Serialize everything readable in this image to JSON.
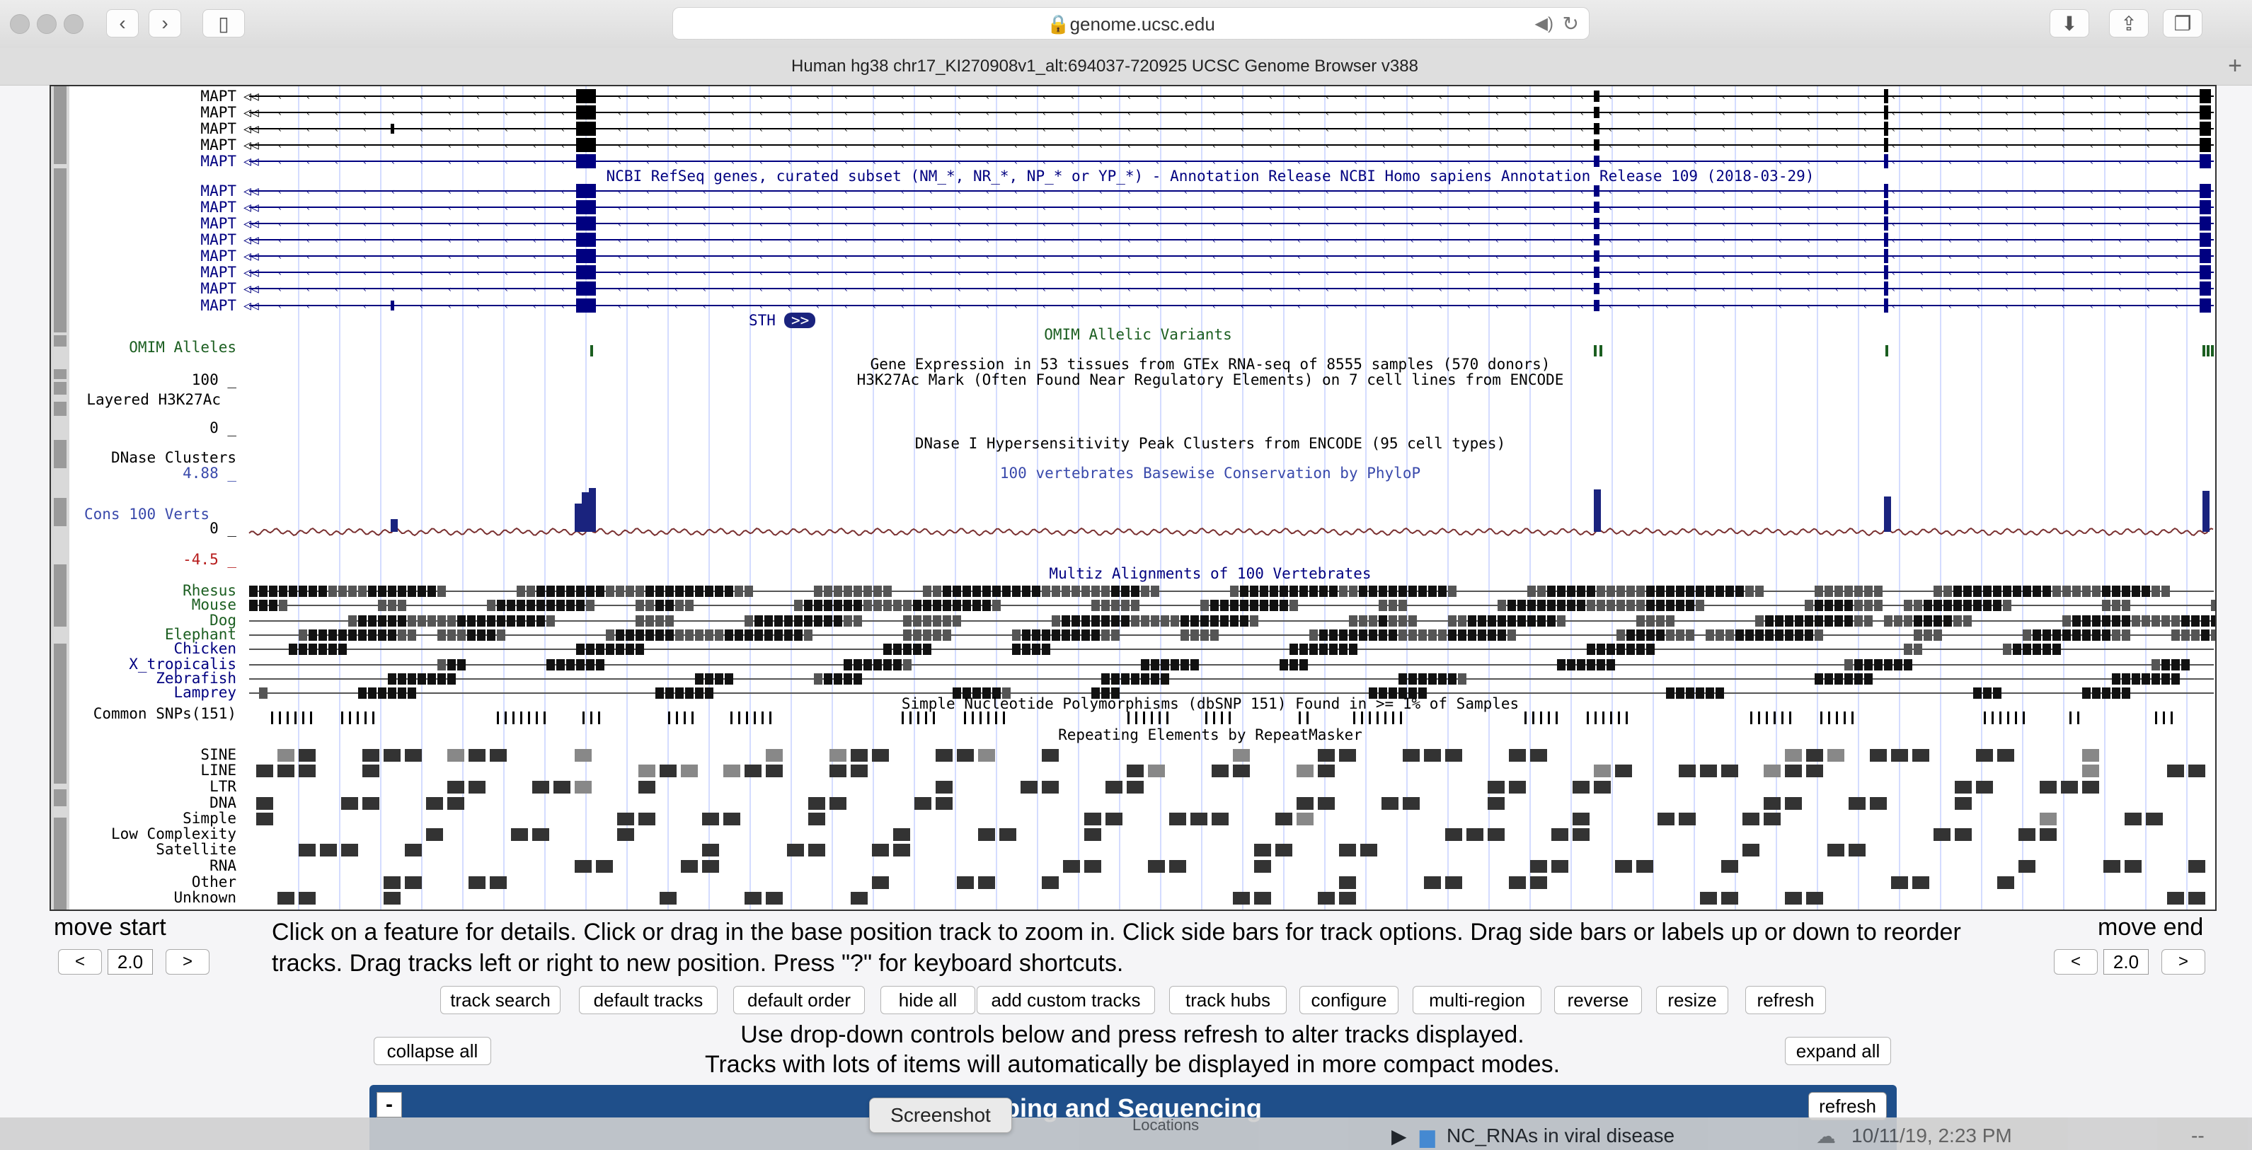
{
  "window": {
    "url": "genome.ucsc.edu",
    "tab_title": "Human hg38 chr17_KI270908v1_alt:694037-720925 UCSC Genome Browser v388"
  },
  "icons": [
    "back-icon",
    "forward-icon",
    "sidebar-icon",
    "lock-icon",
    "speaker-icon",
    "reload-icon",
    "download-icon",
    "share-icon",
    "tabs-icon",
    "new-tab-icon"
  ],
  "tracks": {
    "mapt_alt": [
      "MAPT",
      "MAPT",
      "MAPT",
      "MAPT",
      "MAPT"
    ],
    "refseq_title": "NCBI RefSeq genes, curated subset (NM_*, NR_*, NP_* or YP_*) - Annotation Release NCBI Homo sapiens Annotation Release 109 (2018-03-29)",
    "mapt_refseq": [
      "MAPT",
      "MAPT",
      "MAPT",
      "MAPT",
      "MAPT",
      "MAPT",
      "MAPT",
      "MAPT"
    ],
    "sth": "STH",
    "omim_label": "OMIM Alleles",
    "omim_title": "OMIM Allelic Variants",
    "gtex_title": "Gene Expression in 53 tissues from GTEx RNA-seq of 8555 samples (570 donors)",
    "h3k27_max": "100 _",
    "h3k27_label": "Layered H3K27Ac",
    "h3k27_min": "0 _",
    "h3k27_title": "H3K27Ac Mark (Often Found Near Regulatory Elements) on 7 cell lines from ENCODE",
    "dnase_label": "DNase Clusters",
    "dnase_title": "DNase I Hypersensitivity Peak Clusters from ENCODE (95 cell types)",
    "cons_max": "4.88 _",
    "cons_label": "Cons 100 Verts",
    "cons_zero": "0 _",
    "cons_min": "-4.5 _",
    "cons_title": "100 vertebrates Basewise Conservation by PhyloP",
    "multiz_title": "Multiz Alignments of 100 Vertebrates",
    "species": [
      "Rhesus",
      "Mouse",
      "Dog",
      "Elephant",
      "Chicken",
      "X_tropicalis",
      "Zebrafish",
      "Lamprey"
    ],
    "snp_label": "Common SNPs(151)",
    "snp_title": "Simple Nucleotide Polymorphisms (dbSNP 151) Found in >= 1% of Samples",
    "rmsk_title": "Repeating Elements by RepeatMasker",
    "rmsk_classes": [
      "SINE",
      "LINE",
      "LTR",
      "DNA",
      "Simple",
      "Low Complexity",
      "Satellite",
      "RNA",
      "Other",
      "Unknown"
    ]
  },
  "controls": {
    "move_start": "move start",
    "move_end": "move end",
    "left_arrow": "<",
    "right_arrow": ">",
    "start_zoom": "2.0",
    "end_zoom": "2.0",
    "help_text": "Click on a feature for details. Click or drag in the base position track to zoom in. Click side bars for track options. Drag side bars or labels up or down to reorder tracks. Drag tracks left or right to new position. Press \"?\" for keyboard shortcuts.",
    "buttons": [
      "track search",
      "default tracks",
      "default order",
      "hide all",
      "add custom tracks",
      "track hubs",
      "configure",
      "multi-region",
      "reverse",
      "resize",
      "refresh"
    ],
    "collapse_all": "collapse all",
    "expand_all": "expand all",
    "info_line1": "Use drop-down controls below and press refresh to alter tracks displayed.",
    "info_line2": "Tracks with lots of items will automatically be displayed in more compact modes."
  },
  "panel": {
    "minus": "-",
    "title": "ping and Sequencing",
    "refresh": "refresh"
  },
  "overlay": {
    "tooltip": "Screenshot",
    "locations": "Locations",
    "folder": "NC_RNAs in viral disease",
    "date": "10/11/19, 2:23 PM",
    "dash": "--"
  }
}
